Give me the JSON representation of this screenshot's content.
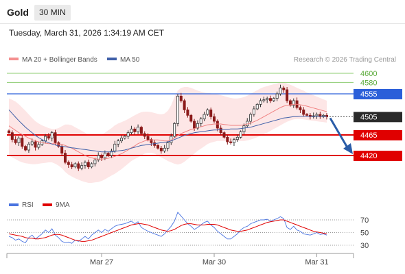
{
  "header": {
    "title": "Gold",
    "timeframe": "30 MIN",
    "datetime": "Tuesday, March 31, 2026 1:34:19 AM CET"
  },
  "chart_data": [
    {
      "type": "candlestick",
      "legend": [
        {
          "name": "MA 20 + Bollinger Bands",
          "color": "#f48f8f"
        },
        {
          "name": "MA 50",
          "color": "#3f5fa8"
        }
      ],
      "credit": "Research © 2026 Trading Central",
      "levels": [
        {
          "label": "4600",
          "value": 4600,
          "kind": "target",
          "color": "#8ccc70"
        },
        {
          "label": "4580",
          "value": 4580,
          "kind": "target",
          "color": "#8ccc70"
        },
        {
          "label": "4555",
          "value": 4555,
          "kind": "resistance",
          "color": "#2b5fd9"
        },
        {
          "label": "4465",
          "value": 4465,
          "kind": "support",
          "color": "#e00000"
        },
        {
          "label": "4420",
          "value": 4420,
          "kind": "support",
          "color": "#e00000"
        }
      ],
      "last_price": {
        "label": "4505",
        "value": 4505
      },
      "x_ticks": [
        "Mar 27",
        "Mar 30",
        "Mar 31"
      ],
      "forecast": {
        "from": 4505,
        "to": 4420,
        "direction": "down"
      },
      "series": {
        "close": [
          4470,
          4455,
          4448,
          4458,
          4440,
          4432,
          4445,
          4450,
          4438,
          4444,
          4452,
          4462,
          4458,
          4470,
          4448,
          4440,
          4425,
          4405,
          4400,
          4395,
          4402,
          4392,
          4398,
          4405,
          4395,
          4402,
          4410,
          4420,
          4415,
          4425,
          4420,
          4430,
          4445,
          4452,
          4458,
          4462,
          4470,
          4478,
          4472,
          4482,
          4468,
          4462,
          4455,
          4448,
          4442,
          4436,
          4430,
          4436,
          4448,
          4462,
          4490,
          4550,
          4540,
          4520,
          4508,
          4495,
          4480,
          4490,
          4500,
          4510,
          4520,
          4505,
          4495,
          4480,
          4470,
          4460,
          4450,
          4448,
          4455,
          4460,
          4472,
          4485,
          4495,
          4510,
          4522,
          4532,
          4540,
          4542,
          4545,
          4540,
          4545,
          4555,
          4568,
          4564,
          4540,
          4530,
          4540,
          4525,
          4520,
          4510,
          4508,
          4505,
          4507,
          4510,
          4505,
          4508,
          4505
        ],
        "ma20": [
          4485,
          4480,
          4475,
          4470,
          4466,
          4462,
          4458,
          4455,
          4452,
          4450,
          4448,
          4447,
          4446,
          4446,
          4446,
          4445,
          4444,
          4442,
          4439,
          4436,
          4432,
          4428,
          4424,
          4420,
          4417,
          4415,
          4413,
          4412,
          4412,
          4413,
          4414,
          4416,
          4418,
          4421,
          4424,
          4428,
          4432,
          4437,
          4441,
          4446,
          4449,
          4452,
          4453,
          4454,
          4454,
          4454,
          4453,
          4452,
          4452,
          4454,
          4458,
          4464,
          4468,
          4471,
          4474,
          4477,
          4479,
          4481,
          4483,
          4485,
          4487,
          4488,
          4489,
          4489,
          4489,
          4488,
          4487,
          4486,
          4486,
          4486,
          4486,
          4487,
          4489,
          4491,
          4494,
          4497,
          4501,
          4505,
          4509,
          4513,
          4517,
          4521,
          4525,
          4528,
          4530,
          4531,
          4532,
          4532,
          4531,
          4530,
          4528,
          4526,
          4524,
          4522,
          4520,
          4518,
          4516
        ],
        "bb_upper": [
          4545,
          4542,
          4538,
          4532,
          4525,
          4518,
          4510,
          4502,
          4495,
          4490,
          4486,
          4483,
          4480,
          4478,
          4478,
          4480,
          4484,
          4488,
          4488,
          4486,
          4482,
          4478,
          4474,
          4470,
          4466,
          4464,
          4463,
          4464,
          4466,
          4470,
          4475,
          4480,
          4486,
          4490,
          4493,
          4496,
          4500,
          4504,
          4508,
          4512,
          4515,
          4516,
          4516,
          4515,
          4513,
          4511,
          4510,
          4512,
          4518,
          4530,
          4548,
          4562,
          4568,
          4570,
          4570,
          4568,
          4565,
          4562,
          4560,
          4558,
          4557,
          4556,
          4555,
          4554,
          4552,
          4550,
          4548,
          4546,
          4545,
          4545,
          4546,
          4548,
          4551,
          4555,
          4559,
          4563,
          4567,
          4570,
          4572,
          4574,
          4576,
          4578,
          4580,
          4580,
          4578,
          4575,
          4572,
          4568,
          4565,
          4562,
          4558,
          4555,
          4552,
          4549,
          4546,
          4543,
          4540
        ],
        "bb_lower": [
          4420,
          4416,
          4412,
          4408,
          4405,
          4403,
          4402,
          4401,
          4401,
          4402,
          4403,
          4404,
          4405,
          4405,
          4402,
          4398,
          4392,
          4384,
          4378,
          4374,
          4370,
          4367,
          4364,
          4362,
          4360,
          4360,
          4361,
          4362,
          4364,
          4368,
          4372,
          4376,
          4380,
          4385,
          4390,
          4396,
          4402,
          4408,
          4412,
          4416,
          4420,
          4424,
          4426,
          4426,
          4424,
          4420,
          4416,
          4412,
          4408,
          4405,
          4402,
          4400,
          4402,
          4406,
          4412,
          4418,
          4424,
          4430,
          4435,
          4440,
          4445,
          4448,
          4450,
          4452,
          4452,
          4452,
          4452,
          4452,
          4452,
          4452,
          4452,
          4452,
          4453,
          4455,
          4457,
          4460,
          4463,
          4467,
          4470,
          4474,
          4478,
          4482,
          4486,
          4490,
          4494,
          4497,
          4499,
          4500,
          4500,
          4499,
          4498,
          4497,
          4496,
          4495,
          4494,
          4493,
          4492
        ],
        "ma50": [
          4520,
          4512,
          4504,
          4496,
          4489,
          4482,
          4476,
          4470,
          4464,
          4459,
          4455,
          4451,
          4448,
          4445,
          4443,
          4441,
          4440,
          4439,
          4438,
          4437,
          4436,
          4435,
          4434,
          4433,
          4432,
          4431,
          4430,
          4429,
          4428,
          4428,
          4428,
          4428,
          4429,
          4430,
          4431,
          4432,
          4434,
          4436,
          4438,
          4440,
          4442,
          4443,
          4444,
          4445,
          4446,
          4447,
          4448,
          4449,
          4450,
          4452,
          4455,
          4458,
          4461,
          4464,
          4466,
          4468,
          4470,
          4471,
          4472,
          4473,
          4474,
          4475,
          4476,
          4476,
          4477,
          4477,
          4477,
          4478,
          4478,
          4478,
          4479,
          4480,
          4481,
          4482,
          4484,
          4486,
          4488,
          4490,
          4492,
          4494,
          4496,
          4498,
          4500,
          4502,
          4503,
          4504,
          4505,
          4505,
          4506,
          4506,
          4506,
          4506,
          4506,
          4506,
          4506,
          4506,
          4506
        ]
      }
    },
    {
      "type": "line",
      "legend": [
        {
          "name": "RSI",
          "color": "#4a74e0"
        },
        {
          "name": "9MA",
          "color": "#e00000"
        }
      ],
      "y_ticks": [
        70,
        50,
        30
      ],
      "series": {
        "rsi": [
          44,
          42,
          38,
          40,
          36,
          34,
          42,
          46,
          40,
          44,
          48,
          54,
          50,
          56,
          46,
          42,
          36,
          34,
          35,
          33,
          38,
          36,
          40,
          44,
          40,
          46,
          50,
          54,
          50,
          55,
          52,
          56,
          60,
          62,
          63,
          64,
          66,
          68,
          64,
          67,
          58,
          55,
          52,
          50,
          48,
          46,
          44,
          48,
          54,
          60,
          68,
          82,
          76,
          70,
          64,
          60,
          55,
          58,
          62,
          66,
          68,
          62,
          58,
          52,
          48,
          44,
          40,
          40,
          44,
          48,
          54,
          58,
          60,
          64,
          66,
          68,
          70,
          70,
          71,
          68,
          70,
          72,
          75,
          72,
          58,
          55,
          60,
          54,
          52,
          48,
          47,
          46,
          48,
          50,
          47,
          48,
          46
        ],
        "ma9": [
          48,
          47,
          46,
          45,
          44,
          42,
          41,
          41,
          40,
          40,
          41,
          42,
          44,
          46,
          47,
          47,
          46,
          44,
          42,
          40,
          38,
          37,
          36,
          36,
          37,
          38,
          40,
          42,
          44,
          46,
          48,
          50,
          52,
          54,
          56,
          58,
          60,
          62,
          63,
          64,
          64,
          63,
          62,
          60,
          58,
          56,
          54,
          53,
          52,
          53,
          55,
          58,
          61,
          63,
          64,
          64,
          63,
          62,
          62,
          62,
          63,
          63,
          63,
          62,
          60,
          58,
          56,
          54,
          53,
          52,
          52,
          53,
          54,
          56,
          58,
          60,
          62,
          64,
          66,
          67,
          68,
          69,
          70,
          70,
          68,
          66,
          64,
          62,
          60,
          58,
          56,
          54,
          52,
          51,
          50,
          49,
          48
        ]
      }
    }
  ]
}
